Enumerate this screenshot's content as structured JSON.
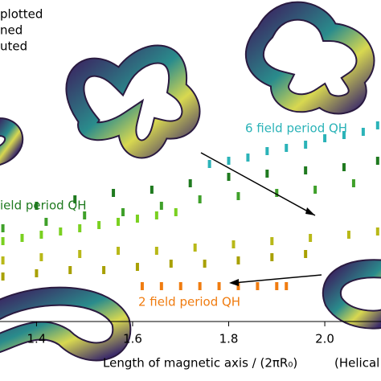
{
  "chart_data": {
    "type": "scatter",
    "legend_texts": [
      "plotted",
      "ned",
      "uted"
    ],
    "annotations": [
      "6 field period QH",
      "ield period QH",
      "2 field period QH"
    ],
    "x_label": "Length of magnetic axis / (2πR₀)",
    "x_label_extra": "(Helical",
    "xlim": [
      1.324,
      2.117
    ],
    "xticks": [
      1.4,
      1.6,
      1.8,
      {
        "value": 2,
        "label": "2.0"
      }
    ],
    "ylim": [
      0,
      1
    ],
    "series": [
      {
        "color": "#2bb3b8",
        "x": [
          1.76,
          1.8,
          1.84,
          1.88,
          1.92,
          1.96,
          2.0,
          2.04,
          2.08,
          2.11
        ],
        "values": [
          0.49,
          0.5,
          0.51,
          0.53,
          0.54,
          0.55,
          0.57,
          0.58,
          0.59,
          0.61
        ]
      },
      {
        "color": "#1f7a1f",
        "x": [
          1.4,
          1.48,
          1.56,
          1.64,
          1.72,
          1.8,
          1.88,
          1.96,
          2.04,
          2.11
        ],
        "values": [
          0.36,
          0.38,
          0.4,
          0.41,
          0.43,
          0.45,
          0.46,
          0.47,
          0.48,
          0.5
        ]
      },
      {
        "color": "#3fa02a",
        "x": [
          1.33,
          1.42,
          1.5,
          1.58,
          1.66,
          1.74,
          1.82,
          1.9,
          1.98,
          2.06
        ],
        "values": [
          0.29,
          0.31,
          0.33,
          0.34,
          0.36,
          0.38,
          0.39,
          0.4,
          0.41,
          0.43
        ]
      },
      {
        "color": "#7ad020",
        "x": [
          1.33,
          1.37,
          1.41,
          1.45,
          1.49,
          1.53,
          1.57,
          1.61,
          1.65,
          1.69
        ],
        "values": [
          0.25,
          0.26,
          0.27,
          0.28,
          0.29,
          0.3,
          0.31,
          0.32,
          0.33,
          0.34
        ]
      },
      {
        "color": "#b8b818",
        "x": [
          1.33,
          1.41,
          1.49,
          1.57,
          1.65,
          1.73,
          1.81,
          1.89,
          1.97,
          2.05,
          2.11
        ],
        "values": [
          0.19,
          0.2,
          0.21,
          0.22,
          0.22,
          0.23,
          0.24,
          0.25,
          0.26,
          0.27,
          0.28
        ]
      },
      {
        "color": "#a8a000",
        "x": [
          1.33,
          1.4,
          1.47,
          1.54,
          1.61,
          1.68,
          1.75,
          1.82,
          1.89,
          1.96
        ],
        "values": [
          0.14,
          0.15,
          0.16,
          0.16,
          0.17,
          0.18,
          0.18,
          0.19,
          0.2,
          0.21
        ]
      },
      {
        "color": "#f07c10",
        "x": [
          1.62,
          1.66,
          1.7,
          1.74,
          1.78,
          1.82,
          1.86,
          1.9,
          1.92
        ],
        "values": [
          0.11,
          0.11,
          0.11,
          0.11,
          0.11,
          0.11,
          0.11,
          0.11,
          0.11
        ]
      }
    ]
  }
}
